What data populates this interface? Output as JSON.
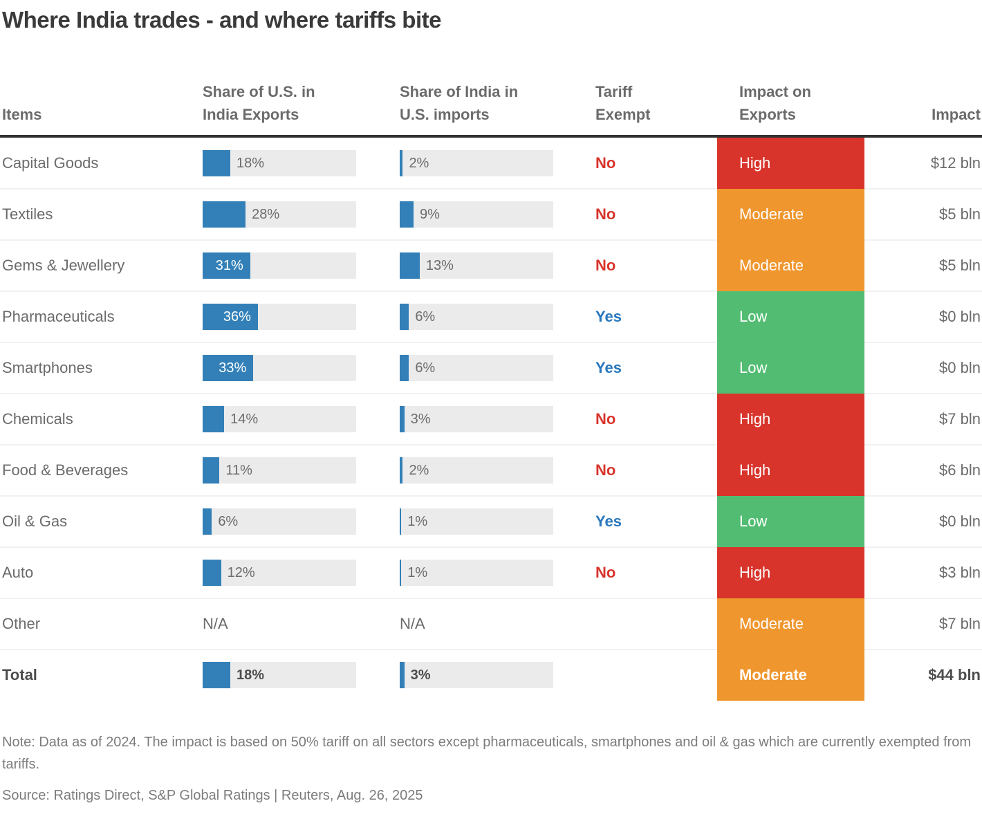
{
  "title": "Where India trades - and where tariffs bite",
  "headers": {
    "items": "Items",
    "us_share": "Share of U.S. in\nIndia Exports",
    "india_share": "Share of India in\nU.S. imports",
    "tariff": "Tariff\nExempt",
    "impact_exports": "Impact on\nExports",
    "impact": "Impact"
  },
  "colors": {
    "bar_blue": "#3380b8",
    "track_gray": "#ebebeb",
    "yes_blue": "#2878bd",
    "no_red": "#d8342b",
    "impact": {
      "High": "#d8342b",
      "Moderate": "#f0962e",
      "Low": "#52bd72"
    }
  },
  "rows": [
    {
      "item": "Capital Goods",
      "us_share_pct": 18,
      "us_share_label": "18%",
      "india_share_pct": 2,
      "india_share_label": "2%",
      "tariff_exempt": "No",
      "impact_level": "High",
      "impact_value": "$12 bln",
      "bold": false
    },
    {
      "item": "Textiles",
      "us_share_pct": 28,
      "us_share_label": "28%",
      "india_share_pct": 9,
      "india_share_label": "9%",
      "tariff_exempt": "No",
      "impact_level": "Moderate",
      "impact_value": "$5 bln",
      "bold": false
    },
    {
      "item": "Gems & Jewellery",
      "us_share_pct": 31,
      "us_share_label": "31%",
      "india_share_pct": 13,
      "india_share_label": "13%",
      "tariff_exempt": "No",
      "impact_level": "Moderate",
      "impact_value": "$5 bln",
      "bold": false
    },
    {
      "item": "Pharmaceuticals",
      "us_share_pct": 36,
      "us_share_label": "36%",
      "india_share_pct": 6,
      "india_share_label": "6%",
      "tariff_exempt": "Yes",
      "impact_level": "Low",
      "impact_value": "$0 bln",
      "bold": false
    },
    {
      "item": "Smartphones",
      "us_share_pct": 33,
      "us_share_label": "33%",
      "india_share_pct": 6,
      "india_share_label": "6%",
      "tariff_exempt": "Yes",
      "impact_level": "Low",
      "impact_value": "$0 bln",
      "bold": false
    },
    {
      "item": "Chemicals",
      "us_share_pct": 14,
      "us_share_label": "14%",
      "india_share_pct": 3,
      "india_share_label": "3%",
      "tariff_exempt": "No",
      "impact_level": "High",
      "impact_value": "$7 bln",
      "bold": false
    },
    {
      "item": "Food & Beverages",
      "us_share_pct": 11,
      "us_share_label": "11%",
      "india_share_pct": 2,
      "india_share_label": "2%",
      "tariff_exempt": "No",
      "impact_level": "High",
      "impact_value": "$6 bln",
      "bold": false
    },
    {
      "item": "Oil & Gas",
      "us_share_pct": 6,
      "us_share_label": "6%",
      "india_share_pct": 1,
      "india_share_label": "1%",
      "tariff_exempt": "Yes",
      "impact_level": "Low",
      "impact_value": "$0 bln",
      "bold": false
    },
    {
      "item": "Auto",
      "us_share_pct": 12,
      "us_share_label": "12%",
      "india_share_pct": 1,
      "india_share_label": "1%",
      "tariff_exempt": "No",
      "impact_level": "High",
      "impact_value": "$3 bln",
      "bold": false
    },
    {
      "item": "Other",
      "us_share_pct": null,
      "us_share_label": "N/A",
      "india_share_pct": null,
      "india_share_label": "N/A",
      "tariff_exempt": "",
      "impact_level": "Moderate",
      "impact_value": "$7 bln",
      "bold": false
    },
    {
      "item": "Total",
      "us_share_pct": 18,
      "us_share_label": "18%",
      "india_share_pct": 3,
      "india_share_label": "3%",
      "tariff_exempt": "",
      "impact_level": "Moderate",
      "impact_value": "$44 bln",
      "bold": true
    }
  ],
  "note": "Note: Data as of 2024. The impact is based on 50% tariff on all sectors except pharmaceuticals, smartphones and oil & gas which are currently exempted from tariffs.",
  "source": "Source: Ratings Direct, S&P Global Ratings | Reuters, Aug. 26, 2025",
  "chart_data": {
    "type": "table",
    "title": "Where India trades - and where tariffs bite",
    "columns": [
      "Items",
      "Share of U.S. in India Exports (%)",
      "Share of India in U.S. imports (%)",
      "Tariff Exempt",
      "Impact on Exports",
      "Impact"
    ],
    "bar_axis_max_pct": 100,
    "rows": [
      [
        "Capital Goods",
        18,
        2,
        "No",
        "High",
        "$12 bln"
      ],
      [
        "Textiles",
        28,
        9,
        "No",
        "Moderate",
        "$5 bln"
      ],
      [
        "Gems & Jewellery",
        31,
        13,
        "No",
        "Moderate",
        "$5 bln"
      ],
      [
        "Pharmaceuticals",
        36,
        6,
        "Yes",
        "Low",
        "$0 bln"
      ],
      [
        "Smartphones",
        33,
        6,
        "Yes",
        "Low",
        "$0 bln"
      ],
      [
        "Chemicals",
        14,
        3,
        "No",
        "High",
        "$7 bln"
      ],
      [
        "Food & Beverages",
        11,
        2,
        "No",
        "High",
        "$6 bln"
      ],
      [
        "Oil & Gas",
        6,
        1,
        "Yes",
        "Low",
        "$0 bln"
      ],
      [
        "Auto",
        12,
        1,
        "No",
        "High",
        "$3 bln"
      ],
      [
        "Other",
        null,
        null,
        "",
        "Moderate",
        "$7 bln"
      ],
      [
        "Total",
        18,
        3,
        "",
        "Moderate",
        "$44 bln"
      ]
    ]
  }
}
